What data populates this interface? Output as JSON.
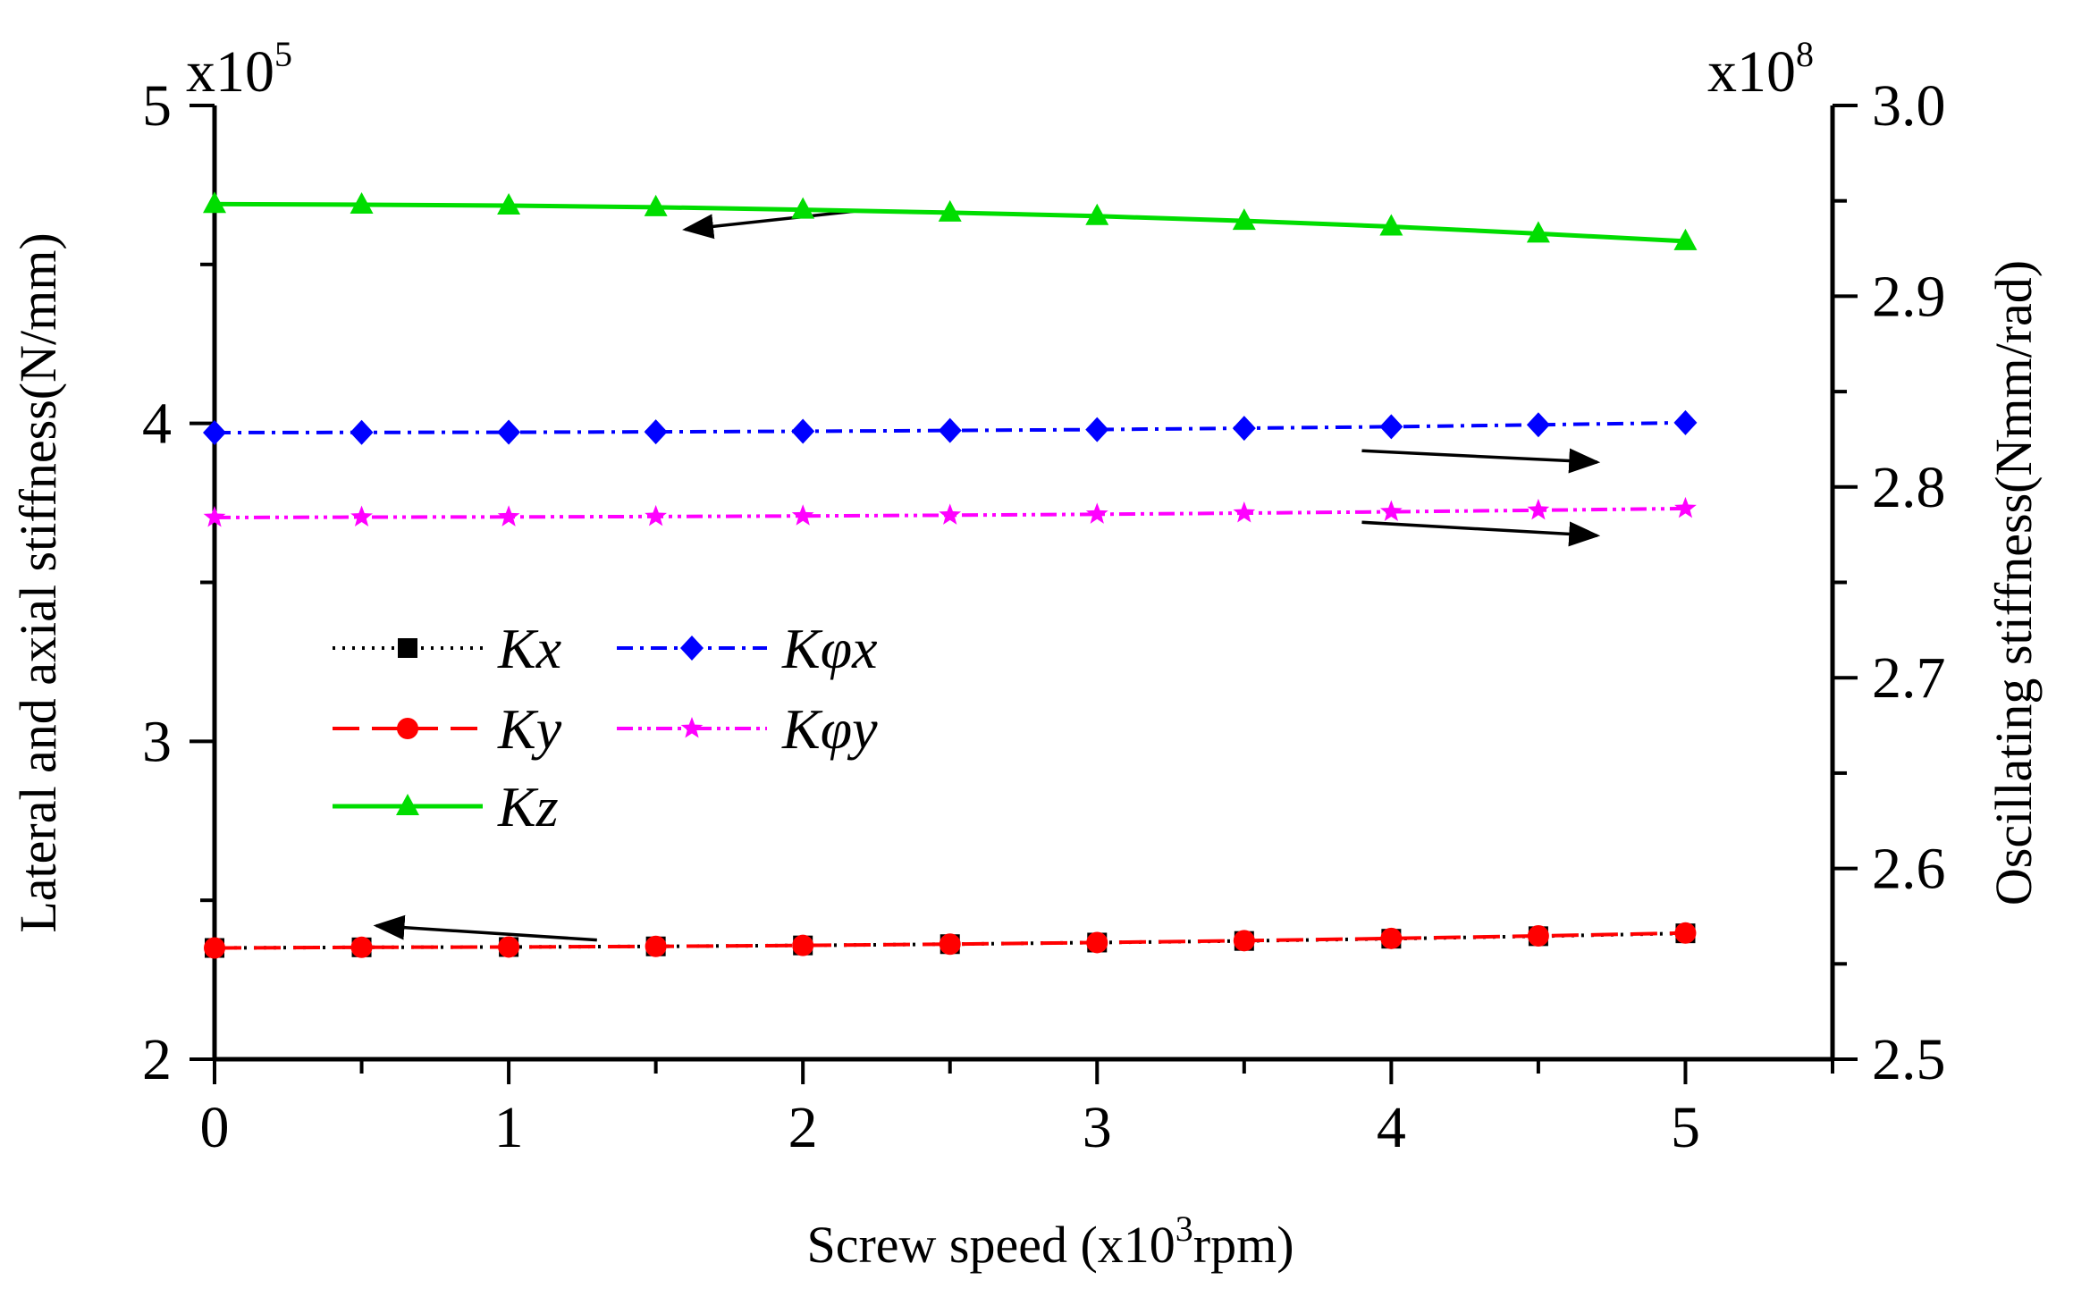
{
  "chart_data": {
    "type": "line",
    "x": [
      0,
      0.5,
      1,
      1.5,
      2,
      2.5,
      3,
      3.5,
      4,
      4.5,
      5
    ],
    "xlabel": "Screw speed (x10",
    "xlabel_sup": "3",
    "xlabel_suffix": "rpm)",
    "xlim": [
      0,
      5.5
    ],
    "xticks": [
      "0",
      "1",
      "2",
      "3",
      "4",
      "5"
    ],
    "ylabel_left": "Lateral and axial stiffness(N/mm)",
    "ylim_left": [
      2,
      5
    ],
    "yticks_left": [
      "2",
      "3",
      "4",
      "5"
    ],
    "left_multiplier": "x10",
    "left_multiplier_exp": "5",
    "ylabel_right": "Oscillating stiffness(Nmm/rad)",
    "ylim_right": [
      2.5,
      3.0
    ],
    "yticks_right": [
      "2.5",
      "2.6",
      "2.7",
      "2.8",
      "2.9",
      "3.0"
    ],
    "right_multiplier": "x10",
    "right_multiplier_exp": "8",
    "series": [
      {
        "name": "Kx",
        "axis": "left",
        "color": "#000000",
        "marker": "square",
        "dash": "dot",
        "values": [
          2.35,
          2.352,
          2.353,
          2.355,
          2.358,
          2.362,
          2.367,
          2.372,
          2.379,
          2.387,
          2.396
        ]
      },
      {
        "name": "Ky",
        "axis": "left",
        "color": "#ff0000",
        "marker": "circle",
        "dash": "dash",
        "values": [
          2.35,
          2.352,
          2.353,
          2.355,
          2.358,
          2.362,
          2.367,
          2.373,
          2.38,
          2.388,
          2.397
        ]
      },
      {
        "name": "Kz",
        "axis": "left",
        "color": "#00dd00",
        "marker": "triangle",
        "dash": "solid",
        "values": [
          4.69,
          4.688,
          4.685,
          4.68,
          4.672,
          4.663,
          4.652,
          4.637,
          4.619,
          4.597,
          4.573
        ]
      },
      {
        "name": "Kφx",
        "axis": "right",
        "color": "#0000ff",
        "marker": "diamond",
        "dash": "dashdot",
        "values": [
          2.8285,
          2.8286,
          2.8287,
          2.8289,
          2.8292,
          2.8296,
          2.8301,
          2.8308,
          2.8316,
          2.8326,
          2.8337
        ]
      },
      {
        "name": "Kφy",
        "axis": "right",
        "color": "#ff00ff",
        "marker": "star",
        "dash": "dashdotdot",
        "values": [
          2.784,
          2.7842,
          2.7843,
          2.7845,
          2.7848,
          2.7852,
          2.7857,
          2.7863,
          2.787,
          2.7878,
          2.7887
        ]
      }
    ],
    "legend": {
      "placement": "middle-left",
      "labels": [
        {
          "base": "K",
          "sub": "x"
        },
        {
          "base": "K",
          "sub": "y"
        },
        {
          "base": "K",
          "sub": "z"
        },
        {
          "base": "K",
          "sub": "φx"
        },
        {
          "base": "K",
          "sub": "φy"
        }
      ]
    },
    "annotations": [
      {
        "type": "arrow",
        "series": "Kz",
        "points_to": "left",
        "from": [
          2.2,
          4.67
        ],
        "to": [
          1.6,
          4.61
        ]
      },
      {
        "type": "arrow",
        "series": "Kφx",
        "points_to": "right",
        "from": [
          3.9,
          2.819
        ],
        "to": [
          4.7,
          2.813
        ]
      },
      {
        "type": "arrow",
        "series": "Kφy",
        "points_to": "right",
        "from": [
          3.9,
          2.7815
        ],
        "to": [
          4.7,
          2.7745
        ]
      },
      {
        "type": "arrow",
        "series": "Kx/Ky",
        "points_to": "left",
        "from": [
          1.3,
          2.375
        ],
        "to": [
          0.55,
          2.42
        ]
      }
    ]
  }
}
